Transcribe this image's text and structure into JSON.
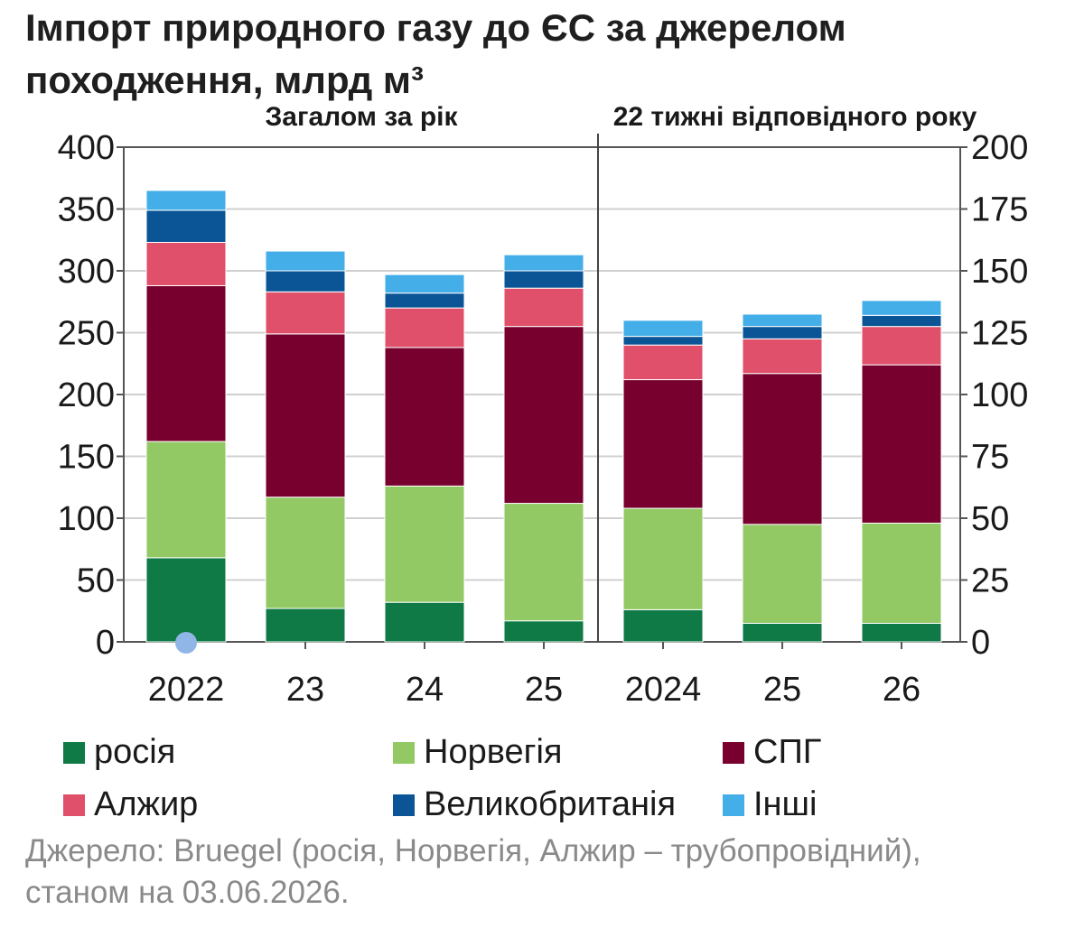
{
  "title": "Імпорт природного газу до ЄС за джерелом походження, млрд м³",
  "source": "Джерело: Bruegel (росія, Норвегія, Алжир – трубопровідний), станом на 03.06.2026.",
  "chart_data": {
    "type": "bar",
    "stacked": true,
    "grid": true,
    "legend_position": "bottom",
    "panels": [
      {
        "title": "Загалом за рік",
        "axis": "left",
        "ylim": [
          0,
          400
        ],
        "yticks": [
          "0",
          "50",
          "100",
          "150",
          "200",
          "250",
          "300",
          "350",
          "400"
        ],
        "categories": [
          "2022",
          "23",
          "24",
          "25"
        ],
        "series": [
          {
            "name": "росія",
            "values": [
              68,
              27,
              32,
              17
            ]
          },
          {
            "name": "Норвегія",
            "values": [
              94,
              90,
              94,
              95
            ]
          },
          {
            "name": "СПГ",
            "values": [
              126,
              132,
              112,
              143
            ]
          },
          {
            "name": "Алжир",
            "values": [
              35,
              34,
              32,
              31
            ]
          },
          {
            "name": "Великобританія",
            "values": [
              26,
              17,
              12,
              14
            ]
          },
          {
            "name": "Інші",
            "values": [
              16,
              16,
              15,
              13
            ]
          }
        ]
      },
      {
        "title": "22 тижні відповідного року",
        "axis": "right",
        "ylim": [
          0,
          200
        ],
        "yticks": [
          "0",
          "25",
          "50",
          "75",
          "100",
          "125",
          "150",
          "175",
          "200"
        ],
        "categories": [
          "2024",
          "25",
          "26"
        ],
        "series": [
          {
            "name": "росія",
            "values": [
              13,
              7.5,
              7.5
            ]
          },
          {
            "name": "Норвегія",
            "values": [
              41,
              40,
              40.5
            ]
          },
          {
            "name": "СПГ",
            "values": [
              52,
              61,
              64
            ]
          },
          {
            "name": "Алжир",
            "values": [
              14,
              14,
              15.5
            ]
          },
          {
            "name": "Великобританія",
            "values": [
              3.5,
              5,
              4.5
            ]
          },
          {
            "name": "Інші",
            "values": [
              6.5,
              5,
              6
            ]
          }
        ]
      }
    ],
    "colors": {
      "росія": "#0f7a45",
      "Норвегія": "#92c964",
      "СПГ": "#78002e",
      "Алжир": "#e0506a",
      "Великобританія": "#0b5596",
      "Інші": "#43aee8"
    },
    "legend": [
      "росія",
      "Норвегія",
      "СПГ",
      "Алжир",
      "Великобританія",
      "Інші"
    ]
  }
}
